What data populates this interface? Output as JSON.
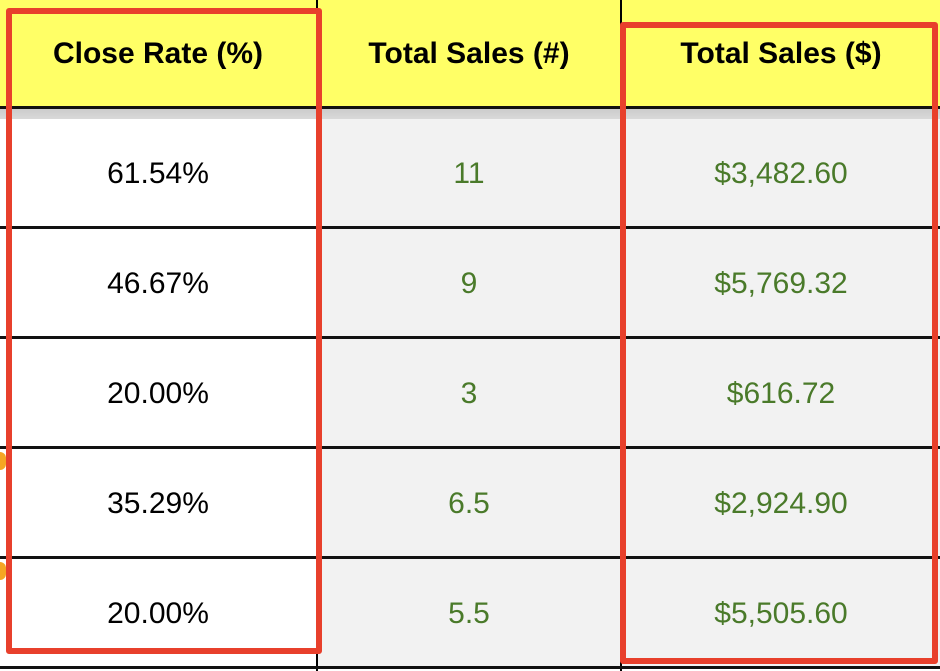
{
  "columns": [
    {
      "header": "Close Rate (%)"
    },
    {
      "header": "Total Sales (#)"
    },
    {
      "header": "Total Sales ($)"
    }
  ],
  "rows": [
    {
      "close_rate": "61.54%",
      "total_sales_count": "11",
      "total_sales_amount": "$3,482.60"
    },
    {
      "close_rate": "46.67%",
      "total_sales_count": "9",
      "total_sales_amount": "$5,769.32"
    },
    {
      "close_rate": "20.00%",
      "total_sales_count": "3",
      "total_sales_amount": "$616.72"
    },
    {
      "close_rate": "35.29%",
      "total_sales_count": "6.5",
      "total_sales_amount": "$2,924.90"
    },
    {
      "close_rate": "20.00%",
      "total_sales_count": "5.5",
      "total_sales_amount": "$5,505.60"
    }
  ],
  "colors": {
    "header_background": "#ffff66",
    "highlight_border": "#e8402c",
    "value_green": "#4a7a2a",
    "cell_gray": "#f2f2f2"
  }
}
